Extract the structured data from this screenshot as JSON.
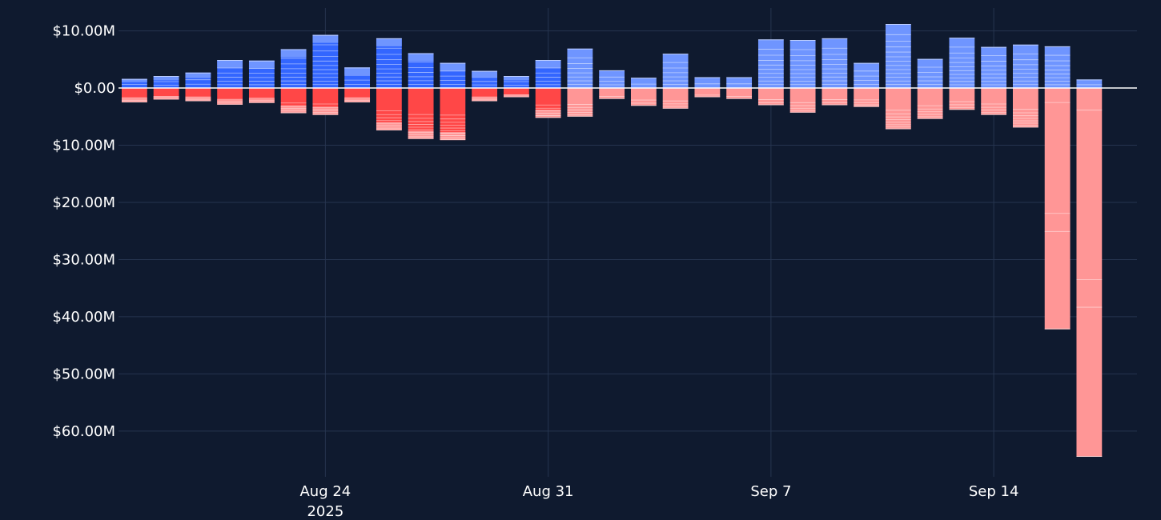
{
  "chart_data": {
    "type": "bar",
    "barmode": "relative",
    "grid": true,
    "legend": "none",
    "colors": {
      "background": "#0f1a2f",
      "grid": "#26344f",
      "zero_line": "#ffffff",
      "positive_base": "#3366ff",
      "positive_light": "#6f95ff",
      "negative_base": "#ff4747",
      "negative_light": "#ff9696",
      "segment_line": "rgba(255,255,255,0.55)"
    },
    "ylim": [
      -68,
      14
    ],
    "y_ticks": [
      {
        "value": 10,
        "label": "$10.00M"
      },
      {
        "value": 0,
        "label": "$0.00"
      },
      {
        "value": -10,
        "label": "$10.00M"
      },
      {
        "value": -20,
        "label": "$20.00M"
      },
      {
        "value": -30,
        "label": "$30.00M"
      },
      {
        "value": -40,
        "label": "$40.00M"
      },
      {
        "value": -50,
        "label": "$50.00M"
      },
      {
        "value": -60,
        "label": "$60.00M"
      }
    ],
    "x_ticks": [
      {
        "date": "2025-08-24",
        "label": "Aug 24",
        "sublabel": "2025"
      },
      {
        "date": "2025-08-31",
        "label": "Aug 31"
      },
      {
        "date": "2025-09-07",
        "label": "Sep 7"
      },
      {
        "date": "2025-09-14",
        "label": "Sep 14"
      }
    ],
    "x_range": [
      "2025-08-17T12:00:00",
      "2025-09-18T12:00:00"
    ],
    "bars": [
      {
        "date": "2025-08-18",
        "positive": 1.6,
        "negative": -2.5
      },
      {
        "date": "2025-08-19",
        "positive": 2.1,
        "negative": -2.0
      },
      {
        "date": "2025-08-20",
        "positive": 2.7,
        "negative": -2.3
      },
      {
        "date": "2025-08-21",
        "positive": 4.9,
        "negative": -2.9
      },
      {
        "date": "2025-08-22",
        "positive": 4.8,
        "negative": -2.6
      },
      {
        "date": "2025-08-23",
        "positive": 6.8,
        "negative": -4.4
      },
      {
        "date": "2025-08-24",
        "positive": 9.3,
        "negative": -4.7
      },
      {
        "date": "2025-08-25",
        "positive": 3.6,
        "negative": -2.5
      },
      {
        "date": "2025-08-26",
        "positive": 8.7,
        "negative": -7.4
      },
      {
        "date": "2025-08-27",
        "positive": 6.1,
        "negative": -8.9
      },
      {
        "date": "2025-08-28",
        "positive": 4.4,
        "negative": -9.1
      },
      {
        "date": "2025-08-29",
        "positive": 3.0,
        "negative": -2.3
      },
      {
        "date": "2025-08-30",
        "positive": 2.1,
        "negative": -1.6
      },
      {
        "date": "2025-08-31",
        "positive": 4.9,
        "negative": -5.2
      },
      {
        "date": "2025-09-01",
        "positive": 6.9,
        "negative": -5.0
      },
      {
        "date": "2025-09-02",
        "positive": 3.1,
        "negative": -1.9
      },
      {
        "date": "2025-09-03",
        "positive": 1.8,
        "negative": -3.1
      },
      {
        "date": "2025-09-04",
        "positive": 6.0,
        "negative": -3.6
      },
      {
        "date": "2025-09-05",
        "positive": 1.9,
        "negative": -1.6
      },
      {
        "date": "2025-09-06",
        "positive": 1.9,
        "negative": -1.9
      },
      {
        "date": "2025-09-07",
        "positive": 8.5,
        "negative": -3.0
      },
      {
        "date": "2025-09-08",
        "positive": 8.4,
        "negative": -4.3
      },
      {
        "date": "2025-09-09",
        "positive": 8.7,
        "negative": -3.0
      },
      {
        "date": "2025-09-10",
        "positive": 4.4,
        "negative": -3.3
      },
      {
        "date": "2025-09-11",
        "positive": 11.2,
        "negative": -7.2
      },
      {
        "date": "2025-09-12",
        "positive": 5.1,
        "negative": -5.4
      },
      {
        "date": "2025-09-13",
        "positive": 8.8,
        "negative": -3.8
      },
      {
        "date": "2025-09-14",
        "positive": 7.2,
        "negative": -4.7
      },
      {
        "date": "2025-09-15",
        "positive": 7.6,
        "negative": -6.9
      },
      {
        "date": "2025-09-16",
        "positive": 7.3,
        "negative": -42.2
      },
      {
        "date": "2025-09-17",
        "positive": 1.5,
        "negative": -64.5
      }
    ]
  }
}
